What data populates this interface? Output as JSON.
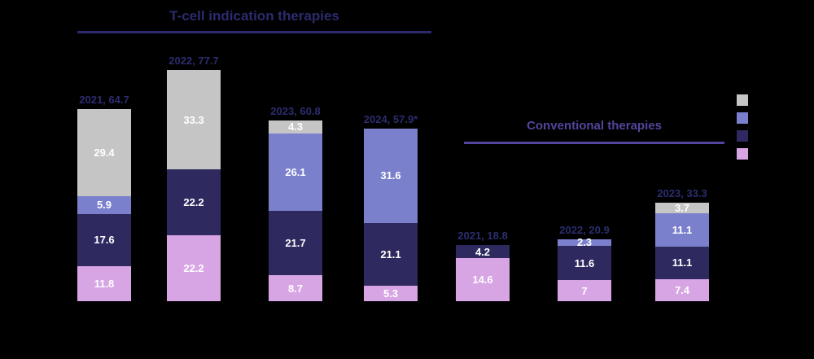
{
  "background": "#000000",
  "colors": {
    "gray": "#c5c5c5",
    "periwinkle": "#7b80cc",
    "navy": "#2e2a60",
    "lavender": "#d7a5e3",
    "left_title": "#2d2a6e",
    "right_title": "#52459c",
    "bar_label": "#2b2d6e",
    "value_text": "#ffffff"
  },
  "chart_data": {
    "type": "bar",
    "stacked": true,
    "grid": false,
    "legend": {
      "position": "top-right",
      "items": [
        {
          "series": "gray",
          "label": ""
        },
        {
          "series": "periwinkle",
          "label": ""
        },
        {
          "series": "navy",
          "label": ""
        },
        {
          "series": "lavender",
          "label": ""
        }
      ]
    },
    "groups": [
      {
        "title": "T-cell indication therapies",
        "bars": [
          {
            "total_label": "2021, 64.7",
            "segments": [
              {
                "series": "lavender",
                "value": 11.8
              },
              {
                "series": "navy",
                "value": 17.6
              },
              {
                "series": "periwinkle",
                "value": 5.9
              },
              {
                "series": "gray",
                "value": 29.4
              }
            ]
          },
          {
            "total_label": "2022, 77.7",
            "segments": [
              {
                "series": "lavender",
                "value": 22.2
              },
              {
                "series": "navy",
                "value": 22.2
              },
              {
                "series": "gray",
                "value": 33.3
              }
            ]
          },
          {
            "total_label": "2023, 60.8",
            "segments": [
              {
                "series": "lavender",
                "value": 8.7
              },
              {
                "series": "navy",
                "value": 21.7
              },
              {
                "series": "periwinkle",
                "value": 26.1
              },
              {
                "series": "gray",
                "value": 4.3
              }
            ]
          },
          {
            "total_label": "2024, 57.9*",
            "segments": [
              {
                "series": "lavender",
                "value": 5.3
              },
              {
                "series": "navy",
                "value": 21.1
              },
              {
                "series": "periwinkle",
                "value": 31.6
              }
            ]
          }
        ]
      },
      {
        "title": "Conventional therapies",
        "bars": [
          {
            "total_label": "2021, 18.8",
            "segments": [
              {
                "series": "lavender",
                "value": 14.6
              },
              {
                "series": "navy",
                "value": 4.2
              }
            ]
          },
          {
            "total_label": "2022, 20.9",
            "segments": [
              {
                "series": "lavender",
                "value": 7
              },
              {
                "series": "navy",
                "value": 11.6
              },
              {
                "series": "periwinkle",
                "value": 2.3
              }
            ]
          },
          {
            "total_label": "2023, 33.3",
            "segments": [
              {
                "series": "lavender",
                "value": 7.4
              },
              {
                "series": "navy",
                "value": 11.1
              },
              {
                "series": "periwinkle",
                "value": 11.1
              },
              {
                "series": "gray",
                "value": 3.7
              }
            ]
          }
        ]
      }
    ]
  }
}
